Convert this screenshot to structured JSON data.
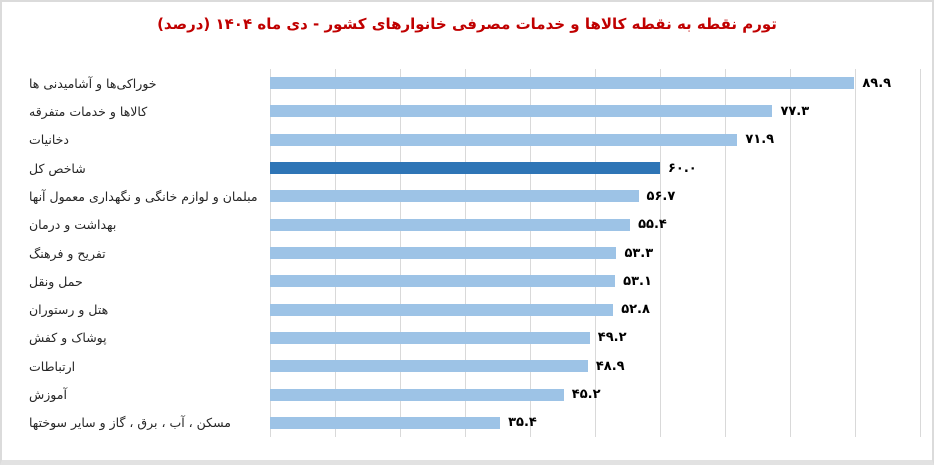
{
  "title": "تورم نقطه به نقطه کالاها و خدمات مصرفی خانوارهای کشور - دی ماه ۱۴۰۴ (درصد)",
  "colors": {
    "background": "#FFFFFF",
    "frame_border": "#DBDBDB",
    "frame_border_bottom": "#E2E2E2",
    "title": "#C00000",
    "bar": "#9DC3E6",
    "bar_highlight": "#2E75B6",
    "gridline": "#D9D9D9",
    "label": "#262626",
    "value": "#000000"
  },
  "chart_data": {
    "type": "bar",
    "orientation": "horizontal",
    "title": "تورم نقطه به نقطه کالاها و خدمات مصرفی خانوارهای کشور - دی ماه ۱۴۰۴ (درصد)",
    "categories": [
      "خوراکی‌ها و آشامیدنی ها",
      "کالاها و خدمات متفرقه",
      "دخانیات",
      "شاخص کل",
      "مبلمان و لوازم خانگی و نگهداری معمول آنها",
      "بهداشت و درمان",
      "تفریح و فرهنگ",
      "حمل ونقل",
      "هتل و رستوران",
      "پوشاک و کفش",
      "ارتباطات",
      "آموزش",
      "مسکن ، آب ، برق ، گاز و سایر سوختها"
    ],
    "values": [
      89.9,
      77.3,
      71.9,
      60.0,
      56.7,
      55.4,
      53.3,
      53.1,
      52.8,
      49.2,
      48.9,
      45.2,
      35.4
    ],
    "value_labels_fa": [
      "۸۹.۹",
      "۷۷.۳",
      "۷۱.۹",
      "۶۰.۰",
      "۵۶.۷",
      "۵۵.۴",
      "۵۳.۳",
      "۵۳.۱",
      "۵۲.۸",
      "۴۹.۲",
      "۴۸.۹",
      "۴۵.۲",
      "۳۵.۴"
    ],
    "highlight_category": "شاخص کل",
    "highlight_index": 3,
    "xlabel": "",
    "ylabel": "",
    "xlim": [
      0,
      100
    ],
    "gridline_interval": 10,
    "grid": true,
    "legend": false,
    "data_labels": true
  }
}
